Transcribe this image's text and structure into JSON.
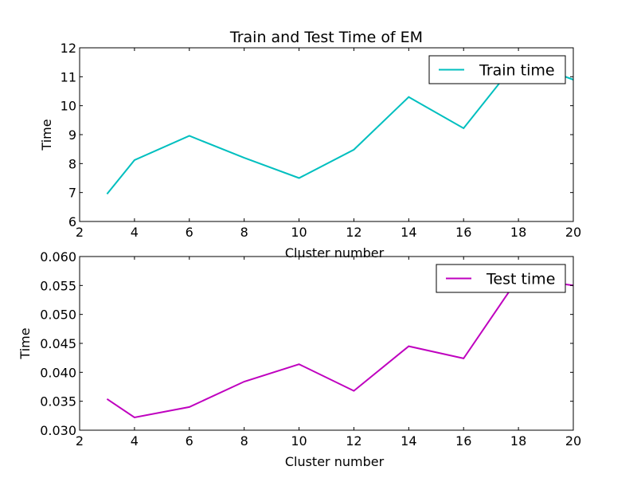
{
  "chart_data": [
    {
      "type": "line",
      "title": "Train and Test Time of EM",
      "xlabel": "Cluster number",
      "ylabel": "Time",
      "xlim": [
        2,
        20
      ],
      "ylim": [
        6,
        12
      ],
      "xticks": [
        2,
        4,
        6,
        8,
        10,
        12,
        14,
        16,
        18,
        20
      ],
      "yticks": [
        6,
        7,
        8,
        9,
        10,
        11,
        12
      ],
      "ytick_labels": [
        "6",
        "7",
        "8",
        "9",
        "10",
        "11",
        "12"
      ],
      "legend_position": "top-right",
      "series": [
        {
          "name": "Train time",
          "color": "#00bfbf",
          "x": [
            3,
            4,
            6,
            8,
            10,
            12,
            14,
            16,
            18,
            20
          ],
          "values": [
            6.95,
            8.12,
            8.96,
            8.2,
            7.5,
            8.48,
            10.3,
            9.22,
            11.6,
            10.9
          ]
        }
      ]
    },
    {
      "type": "line",
      "title": "",
      "xlabel": "Cluster number",
      "ylabel": "Time",
      "xlim": [
        2,
        20
      ],
      "ylim": [
        0.03,
        0.06
      ],
      "xticks": [
        2,
        4,
        6,
        8,
        10,
        12,
        14,
        16,
        18,
        20
      ],
      "yticks": [
        0.03,
        0.035,
        0.04,
        0.045,
        0.05,
        0.055,
        0.06
      ],
      "ytick_labels": [
        "0.030",
        "0.035",
        "0.040",
        "0.045",
        "0.050",
        "0.055",
        "0.060"
      ],
      "legend_position": "top-right",
      "series": [
        {
          "name": "Test time",
          "color": "#bf00bf",
          "x": [
            3,
            4,
            6,
            8,
            10,
            12,
            14,
            16,
            18,
            20
          ],
          "values": [
            0.0354,
            0.0322,
            0.034,
            0.0384,
            0.0414,
            0.0368,
            0.0445,
            0.0424,
            0.0563,
            0.055
          ]
        }
      ]
    }
  ]
}
